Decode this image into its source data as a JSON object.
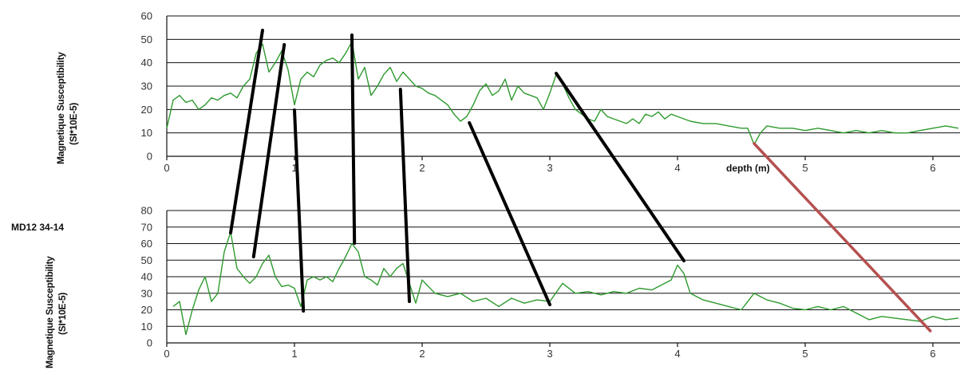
{
  "core_label": "MD12 34-14",
  "colors": {
    "series": "#2e9a2e",
    "tie_line": "#000000",
    "tie_line_red": "#b55050",
    "grid": "#111111"
  },
  "chart_data": [
    {
      "type": "line",
      "ylabel_line1": "Magnetique Susceptibility",
      "ylabel_line2": "(SI*10E-5)",
      "xlabel": "depth (m)",
      "xlim": [
        0,
        6.2
      ],
      "ylim": [
        0,
        60
      ],
      "x_ticks": [
        0,
        1,
        2,
        3,
        4,
        5,
        6
      ],
      "y_ticks": [
        0,
        10,
        20,
        30,
        40,
        50,
        60
      ],
      "grid": "horizontal",
      "series": [
        {
          "x": [
            0.0,
            0.05,
            0.1,
            0.15,
            0.2,
            0.25,
            0.3,
            0.35,
            0.4,
            0.45,
            0.5,
            0.55,
            0.6,
            0.65,
            0.7,
            0.75,
            0.8,
            0.85,
            0.9,
            0.95,
            1.0,
            1.05,
            1.1,
            1.15,
            1.2,
            1.25,
            1.3,
            1.35,
            1.4,
            1.45,
            1.5,
            1.55,
            1.6,
            1.65,
            1.7,
            1.75,
            1.8,
            1.85,
            1.9,
            1.95,
            2.0,
            2.05,
            2.1,
            2.15,
            2.2,
            2.25,
            2.3,
            2.35,
            2.4,
            2.45,
            2.5,
            2.55,
            2.6,
            2.65,
            2.7,
            2.75,
            2.8,
            2.85,
            2.9,
            2.95,
            3.0,
            3.05,
            3.1,
            3.15,
            3.2,
            3.25,
            3.3,
            3.35,
            3.4,
            3.45,
            3.5,
            3.55,
            3.6,
            3.65,
            3.7,
            3.75,
            3.8,
            3.85,
            3.9,
            3.95,
            4.0,
            4.1,
            4.2,
            4.3,
            4.4,
            4.5,
            4.55,
            4.6,
            4.65,
            4.7,
            4.8,
            4.9,
            5.0,
            5.1,
            5.2,
            5.3,
            5.4,
            5.5,
            5.6,
            5.7,
            5.8,
            5.9,
            6.0,
            6.1,
            6.2
          ],
          "y": [
            12,
            24,
            26,
            23,
            24,
            20,
            22,
            25,
            24,
            26,
            27,
            25,
            30,
            33,
            44,
            48,
            36,
            40,
            45,
            37,
            22,
            33,
            36,
            34,
            39,
            41,
            42,
            40,
            44,
            49,
            33,
            38,
            26,
            30,
            35,
            38,
            32,
            36,
            33,
            30,
            29,
            27,
            26,
            24,
            22,
            18,
            15,
            17,
            22,
            28,
            31,
            26,
            28,
            33,
            24,
            30,
            27,
            26,
            25,
            20,
            27,
            35,
            31,
            25,
            20,
            18,
            16,
            15,
            20,
            17,
            16,
            15,
            14,
            16,
            14,
            18,
            17,
            19,
            16,
            18,
            17,
            15,
            14,
            14,
            13,
            12,
            12,
            5,
            10,
            13,
            12,
            12,
            11,
            12,
            11,
            10,
            11,
            10,
            11,
            10,
            10,
            11,
            12,
            13,
            12
          ]
        }
      ]
    },
    {
      "type": "line",
      "ylabel_line1": "Magnetique Susceptibility",
      "ylabel_line2": "(SI*10E-5)",
      "xlabel": "",
      "xlim": [
        0,
        6.2
      ],
      "ylim": [
        0,
        80
      ],
      "x_ticks": [
        0,
        1,
        2,
        3,
        4,
        5,
        6
      ],
      "y_ticks": [
        0,
        10,
        20,
        30,
        40,
        50,
        60,
        70,
        80
      ],
      "grid": "horizontal",
      "series": [
        {
          "x": [
            0.05,
            0.1,
            0.15,
            0.2,
            0.25,
            0.3,
            0.35,
            0.4,
            0.45,
            0.5,
            0.55,
            0.6,
            0.65,
            0.7,
            0.75,
            0.8,
            0.85,
            0.9,
            0.95,
            1.0,
            1.05,
            1.1,
            1.15,
            1.2,
            1.25,
            1.3,
            1.35,
            1.4,
            1.45,
            1.5,
            1.55,
            1.6,
            1.65,
            1.7,
            1.75,
            1.8,
            1.85,
            1.9,
            1.95,
            2.0,
            2.1,
            2.2,
            2.3,
            2.4,
            2.5,
            2.6,
            2.7,
            2.8,
            2.9,
            3.0,
            3.1,
            3.2,
            3.3,
            3.4,
            3.5,
            3.6,
            3.7,
            3.8,
            3.9,
            3.95,
            4.0,
            4.05,
            4.1,
            4.2,
            4.3,
            4.4,
            4.5,
            4.6,
            4.7,
            4.8,
            4.9,
            5.0,
            5.1,
            5.2,
            5.3,
            5.4,
            5.5,
            5.6,
            5.7,
            5.8,
            5.9,
            6.0,
            6.1,
            6.2
          ],
          "y": [
            22,
            25,
            5,
            20,
            32,
            40,
            25,
            30,
            55,
            67,
            45,
            40,
            36,
            40,
            48,
            53,
            40,
            34,
            35,
            33,
            22,
            38,
            40,
            38,
            40,
            37,
            45,
            52,
            60,
            55,
            40,
            38,
            35,
            45,
            40,
            45,
            48,
            36,
            24,
            38,
            30,
            28,
            30,
            25,
            27,
            22,
            27,
            24,
            26,
            25,
            36,
            30,
            31,
            29,
            31,
            30,
            33,
            32,
            36,
            38,
            47,
            42,
            30,
            26,
            24,
            22,
            20,
            30,
            26,
            24,
            21,
            20,
            22,
            20,
            22,
            18,
            14,
            16,
            15,
            14,
            13,
            16,
            14,
            15
          ]
        }
      ]
    }
  ],
  "tie_lines_black": [
    {
      "top_x": 0.75,
      "bottom_x": 0.5
    },
    {
      "top_x": 0.92,
      "bottom_x": 0.68
    },
    {
      "top_x": 1.0,
      "bottom_x": 1.07
    },
    {
      "top_x": 1.45,
      "bottom_x": 1.47
    },
    {
      "top_x": 1.83,
      "bottom_x": 1.9
    },
    {
      "top_x": 2.37,
      "bottom_x": 3.0
    },
    {
      "top_x": 3.05,
      "bottom_x": 4.05
    }
  ],
  "tie_lines_red": [
    {
      "top_x": 4.6,
      "bottom_x": 5.98
    }
  ]
}
